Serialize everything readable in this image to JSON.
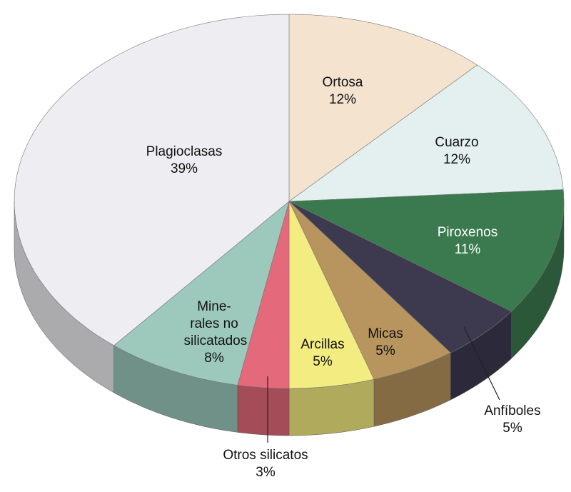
{
  "chart_data": {
    "type": "pie3d",
    "categories": [
      "Ortosa",
      "Cuarzo",
      "Piroxenos",
      "Anfíboles",
      "Micas",
      "Arcillas",
      "Otros silicatos",
      "Mine-rales no silicatados",
      "Plagioclasas"
    ],
    "values": [
      12,
      12,
      11,
      5,
      5,
      5,
      3,
      8,
      39
    ],
    "value_labels": [
      "12%",
      "12%",
      "11%",
      "5%",
      "5%",
      "5%",
      "3%",
      "8%",
      "39%"
    ],
    "colors": [
      "#f3e3cf",
      "#e4f0f0",
      "#3a7a4e",
      "#3d3a50",
      "#b8955f",
      "#f3ec80",
      "#e4697a",
      "#9cc9bc",
      "#eeeef2"
    ]
  }
}
